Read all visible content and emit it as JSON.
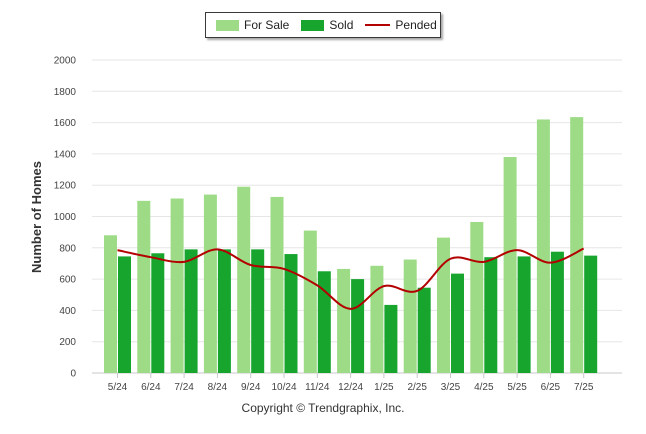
{
  "legend": {
    "for_sale": "For Sale",
    "sold": "Sold",
    "pended": "Pended"
  },
  "copyright": "Copyright © Trendgraphix, Inc.",
  "colors": {
    "for_sale": "#9ddb86",
    "sold": "#17a52e",
    "pended": "#b30000",
    "grid": "#e6e6e6"
  },
  "chart_data": {
    "type": "bar",
    "title": "",
    "xlabel": "",
    "ylabel": "Number of Homes",
    "ylim": [
      0,
      2000
    ],
    "yticks": [
      0,
      200,
      400,
      600,
      800,
      1000,
      1200,
      1400,
      1600,
      1800,
      2000
    ],
    "grid": true,
    "legend_position": "top-center",
    "categories": [
      "5/24",
      "6/24",
      "7/24",
      "8/24",
      "9/24",
      "10/24",
      "11/24",
      "12/24",
      "1/25",
      "2/25",
      "3/25",
      "4/25",
      "5/25",
      "6/25",
      "7/25"
    ],
    "series": [
      {
        "name": "For Sale",
        "type": "bar",
        "values": [
          880,
          1100,
          1115,
          1140,
          1190,
          1125,
          910,
          665,
          685,
          725,
          865,
          965,
          1380,
          1620,
          1635
        ]
      },
      {
        "name": "Sold",
        "type": "bar",
        "values": [
          745,
          765,
          790,
          790,
          790,
          760,
          650,
          600,
          435,
          545,
          635,
          740,
          745,
          775,
          750
        ]
      },
      {
        "name": "Pended",
        "type": "line",
        "values": [
          785,
          740,
          710,
          790,
          690,
          665,
          560,
          410,
          555,
          525,
          730,
          710,
          785,
          705,
          795
        ]
      }
    ]
  }
}
